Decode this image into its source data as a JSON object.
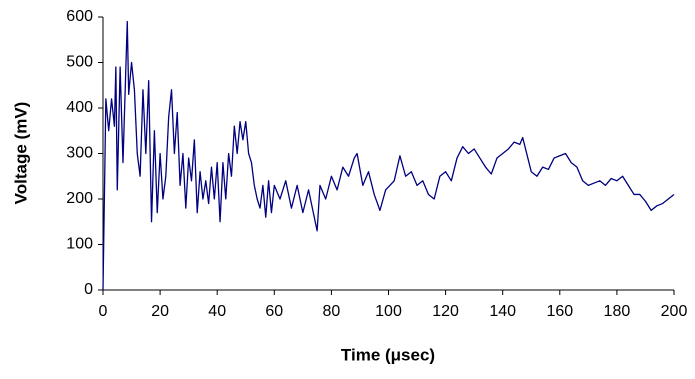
{
  "chart_data": {
    "type": "line",
    "x_label": "Time (μsec)",
    "y_label": "Voltage (mV)",
    "x": [
      0,
      1,
      2,
      3,
      4,
      4.5,
      5,
      6,
      7,
      8.5,
      9,
      10,
      11,
      12,
      13,
      14,
      15,
      16,
      17,
      18,
      19,
      20,
      21,
      22,
      23,
      24,
      25,
      26,
      27,
      28,
      29,
      30,
      31,
      32,
      33,
      34,
      35,
      36,
      37,
      38,
      39,
      40,
      41,
      42,
      43,
      44,
      45,
      46,
      47,
      48,
      49,
      50,
      51,
      52,
      53,
      54,
      55,
      56,
      57,
      58,
      59,
      60,
      62,
      64,
      66,
      68,
      70,
      72,
      74,
      75,
      76,
      78,
      80,
      82,
      84,
      86,
      88,
      89,
      91,
      93,
      95,
      97,
      99,
      102,
      104,
      106,
      108,
      110,
      112,
      114,
      116,
      118,
      120,
      122,
      124,
      126,
      128,
      130,
      132,
      134,
      136,
      138,
      140,
      142,
      144,
      146,
      147,
      148,
      150,
      152,
      154,
      156,
      158,
      160,
      162,
      164,
      166,
      168,
      170,
      172,
      174,
      176,
      178,
      180,
      182,
      184,
      186,
      188,
      190,
      192,
      194,
      196,
      198,
      200
    ],
    "series": [
      {
        "name": "Voltage",
        "color": "#000080",
        "values": [
          0,
          420,
          350,
          420,
          360,
          490,
          220,
          490,
          280,
          590,
          430,
          500,
          440,
          300,
          250,
          440,
          300,
          460,
          150,
          350,
          170,
          300,
          200,
          250,
          380,
          440,
          300,
          390,
          230,
          300,
          180,
          290,
          240,
          330,
          170,
          260,
          200,
          240,
          190,
          270,
          200,
          280,
          150,
          280,
          200,
          300,
          250,
          360,
          300,
          370,
          330,
          370,
          300,
          280,
          230,
          200,
          180,
          230,
          160,
          240,
          170,
          230,
          200,
          240,
          180,
          230,
          170,
          220,
          160,
          130,
          230,
          200,
          250,
          220,
          270,
          250,
          290,
          300,
          230,
          260,
          210,
          175,
          220,
          240,
          295,
          250,
          260,
          230,
          240,
          210,
          200,
          250,
          260,
          240,
          290,
          315,
          300,
          310,
          290,
          270,
          255,
          290,
          300,
          310,
          325,
          320,
          335,
          310,
          260,
          250,
          270,
          265,
          290,
          295,
          300,
          280,
          270,
          240,
          230,
          235,
          240,
          230,
          245,
          240,
          250,
          230,
          210,
          210,
          195,
          175,
          185,
          190,
          200,
          210
        ]
      }
    ],
    "xlim": [
      0,
      200
    ],
    "xticks": [
      0,
      20,
      40,
      60,
      80,
      100,
      120,
      140,
      160,
      180,
      200
    ],
    "ylim": [
      0,
      600
    ],
    "yticks": [
      0,
      100,
      200,
      300,
      400,
      500,
      600
    ],
    "grid": false
  }
}
